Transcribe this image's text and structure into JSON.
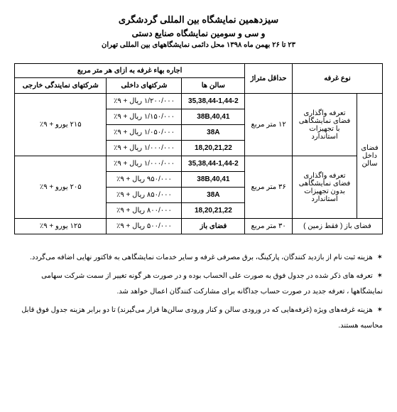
{
  "header": {
    "title_main": "سیزدهمین نمایشگاه بین المللی گردشگری",
    "title_sub": "و سی و سومین نمایشگاه صنایع دستی",
    "subtitle": "۲۳ تا ۲۶ بهمن ماه ۱۳۹۸ محل دائمی نمایشگاههای بین المللی تهران"
  },
  "table": {
    "head": {
      "type": "نوع غرفه",
      "min_area": "حداقل متراژ",
      "rent_header": "اجاره بهاء غرفه به ازای هر متر مربع",
      "halls": "سالن ها",
      "domestic": "شرکتهای داخلی",
      "foreign_rep": "شرکتهای نمایندگی خارجی"
    },
    "group_label": "فضای داخل سالن",
    "sections": [
      {
        "type_lines": [
          "تعرفه واگذاری",
          "فضای نمایشگاهی",
          "با تجهیزات",
          "استاندارد"
        ],
        "min_area": "۱۲ متر مربع",
        "foreign": "۲۱۵ یورو + ۹٪",
        "rows": [
          {
            "halls": "35,38,44-1,44-2",
            "domestic": "۱/۲۰۰/۰۰۰ ریال + ۹٪"
          },
          {
            "halls": "38B,40,41",
            "domestic": "۱/۱۵۰/۰۰۰ ریال + ۹٪"
          },
          {
            "halls": "38A",
            "domestic": "۱/۰۵۰/۰۰۰ ریال + ۹٪"
          },
          {
            "halls": "18,20,21,22",
            "domestic": "۱/۰۰۰/۰۰۰ ریال + ۹٪"
          }
        ]
      },
      {
        "type_lines": [
          "تعرفه واگذاری",
          "فضای نمایشگاهی",
          "بدون تجهیزات",
          "استاندارد"
        ],
        "min_area": "۳۶ متر مربع",
        "foreign": "۲۰۵ یورو + ۹٪",
        "rows": [
          {
            "halls": "35,38,44-1,44-2",
            "domestic": "۱/۰۰۰/۰۰۰ ریال + ۹٪"
          },
          {
            "halls": "38B,40,41",
            "domestic": "۹۵۰/۰۰۰ ریال + ۹٪"
          },
          {
            "halls": "38A",
            "domestic": "۸۵۰/۰۰۰ ریال + ۹٪"
          },
          {
            "halls": "18,20,21,22",
            "domestic": "۸۰۰/۰۰۰ ریال + ۹٪"
          }
        ]
      }
    ],
    "open_space": {
      "type": "فضای باز ( فقط زمین )",
      "min_area": "۳۰ متر مربع",
      "halls": "فضای باز",
      "domestic": "۵۰۰/۰۰۰ ریال + ۹٪",
      "foreign": "۱۲۵ یورو + ۹٪"
    }
  },
  "notes": {
    "star": "✶",
    "items": [
      "هزینه ثبت نام از بازدید کنندگان، پارکینگ، برق مصرفی غرفه و سایر خدمات نمایشگاهی به فاکتور نهایی اضافه می‌گردد.",
      "تعرفه های ذکر شده در جدول فوق به صورت علی الحساب بوده و در صورت هر گونه تغییر از سمت شرکت سهامی نمایشگاهها ، تعرفه جدید در صورت حساب جداگانه برای مشارکت کنندگان اعمال خواهد شد.",
      "هزینه غرفه‌های ویژه (غرفه‌هایی که در ورودی سالن و کنار ورودی سالن‌ها قرار می‌گیرند) تا دو برابر هزینه جدول فوق قابل محاسبه هستند."
    ]
  }
}
